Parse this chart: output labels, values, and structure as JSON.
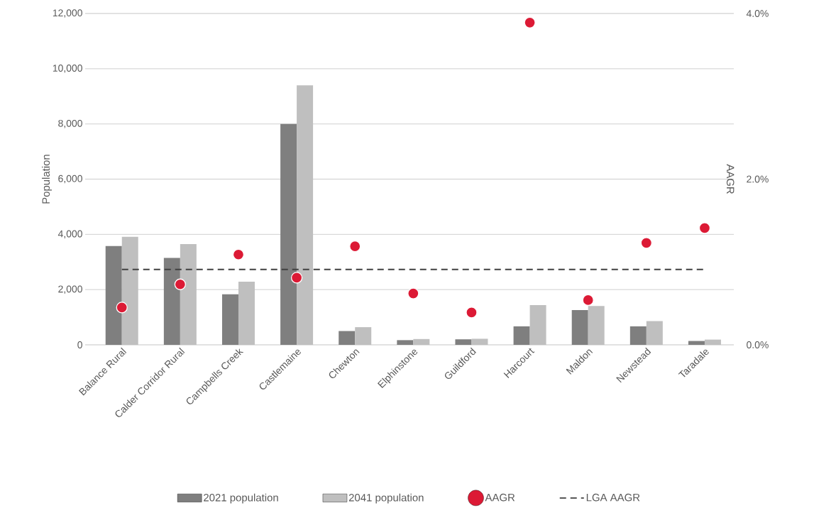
{
  "chart_data": {
    "type": "bar",
    "ylabel": "Population",
    "y2label": "AAGR",
    "categories": [
      "Balance Rural",
      "Calder Corridor Rural",
      "Campbells Creek",
      "Castlemaine",
      "Chewton",
      "Elphinstone",
      "Guildford",
      "Harcourt",
      "Maldon",
      "Newstead",
      "Taradale"
    ],
    "series": [
      {
        "name": "2021 population",
        "color": "#7f7f7f",
        "values": [
          3580,
          3150,
          1830,
          8000,
          500,
          170,
          200,
          670,
          1260,
          670,
          140
        ]
      },
      {
        "name": "2041 population",
        "color": "#bfbfbf",
        "values": [
          3910,
          3650,
          2290,
          9400,
          640,
          210,
          220,
          1440,
          1410,
          860,
          190
        ]
      },
      {
        "name": "AAGR",
        "type": "scatter",
        "axis": "y2",
        "marker": "circle",
        "color": "#dc1a35",
        "values": [
          0.45,
          0.73,
          1.09,
          0.81,
          1.19,
          0.62,
          0.39,
          3.89,
          0.54,
          1.23,
          1.41
        ]
      },
      {
        "name": "LGA AAGR",
        "type": "line",
        "axis": "y2",
        "marker": "none",
        "line_style": "dashed",
        "color": "#404040",
        "values": [
          0.91,
          0.91,
          0.91,
          0.91,
          0.91,
          0.91,
          0.91,
          0.91,
          0.91,
          0.91,
          0.91
        ]
      }
    ],
    "ylim": [
      0,
      12000
    ],
    "yticks": [
      0,
      {
        "value": 2000,
        "label": "2,000"
      },
      {
        "value": 4000,
        "label": "4,000"
      },
      {
        "value": 6000,
        "label": "6,000"
      },
      {
        "value": 8000,
        "label": "8,000"
      },
      {
        "value": 10000,
        "label": "10,000"
      },
      {
        "value": 12000,
        "label": "12,000"
      }
    ],
    "y2lim": [
      0,
      4
    ],
    "y2ticks": [
      {
        "value": 0,
        "label": "0.0%"
      },
      {
        "value": 2,
        "label": "2.0%"
      },
      {
        "value": 4,
        "label": "4.0%"
      }
    ],
    "grid": "y",
    "legend": "bottom"
  }
}
